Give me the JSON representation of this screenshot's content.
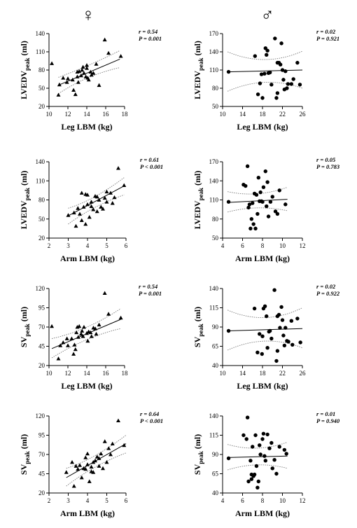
{
  "headers": {
    "female": "♀",
    "male": "♂"
  },
  "chart_data": [
    {
      "type": "scatter",
      "panel": "lvedv-leglbm-female",
      "marker": "triangle",
      "xlabel": "Leg LBM (kg)",
      "ylabel_main": "LVEDV",
      "ylabel_sub": "peak",
      "ylabel_unit": " (ml)",
      "xlim": [
        10,
        18
      ],
      "ylim": [
        20,
        140
      ],
      "xticks": [
        "10",
        "12",
        "14",
        "16",
        "18"
      ],
      "yticks": [
        "20",
        "50",
        "80",
        "110",
        "140"
      ],
      "stat_r": "r = 0.54",
      "stat_p": "P = 0.001",
      "fit": [
        [
          11,
          55
        ],
        [
          17.5,
          98
        ]
      ],
      "ci_upper": [
        [
          11,
          68
        ],
        [
          14,
          85
        ],
        [
          17.5,
          112
        ]
      ],
      "ci_lower": [
        [
          11,
          41
        ],
        [
          14,
          72
        ],
        [
          17.5,
          84
        ]
      ],
      "x": [
        10.3,
        11.0,
        11.1,
        11.5,
        11.9,
        12.0,
        12.5,
        12.6,
        12.8,
        13.0,
        13.0,
        13.2,
        13.4,
        13.5,
        13.6,
        13.7,
        13.9,
        14.0,
        14.0,
        14.1,
        14.2,
        14.4,
        14.5,
        14.7,
        15.0,
        15.3,
        15.9,
        16.3,
        17.6,
        13.1
      ],
      "y": [
        91,
        39,
        56,
        67,
        60,
        66,
        64,
        47,
        40,
        69,
        77,
        78,
        71,
        80,
        85,
        75,
        69,
        88,
        83,
        67,
        64,
        77,
        72,
        75,
        90,
        55,
        130,
        108,
        103,
        60
      ]
    },
    {
      "type": "scatter",
      "panel": "lvedv-leglbm-male",
      "marker": "circle",
      "xlabel": "Leg LBM (kg)",
      "ylabel_main": "LVEDV",
      "ylabel_sub": "peak",
      "ylabel_unit": " (ml)",
      "xlim": [
        10,
        26
      ],
      "ylim": [
        50,
        170
      ],
      "xticks": [
        "10",
        "14",
        "18",
        "22",
        "26"
      ],
      "yticks": [
        "50",
        "80",
        "110",
        "140",
        "170"
      ],
      "stat_r": "r = 0.02",
      "stat_p": "P = 0.921",
      "fit": [
        [
          11,
          107
        ],
        [
          26,
          110
        ]
      ],
      "ci_upper": [
        [
          11,
          140
        ],
        [
          18.5,
          114
        ],
        [
          26,
          141
        ]
      ],
      "ci_lower": [
        [
          11,
          75
        ],
        [
          18.5,
          102
        ],
        [
          26,
          80
        ]
      ],
      "x": [
        11.2,
        16.5,
        17.1,
        17.5,
        18.0,
        18.4,
        18.6,
        18.8,
        19.0,
        19.2,
        19.8,
        20.5,
        20.8,
        21.0,
        21.3,
        21.6,
        21.8,
        22.0,
        22.2,
        22.4,
        22.6,
        22.9,
        23.1,
        24.2,
        25.0,
        25.5,
        17.8,
        19.5,
        21.0,
        23.8
      ],
      "y": [
        107,
        133,
        70,
        88,
        64,
        104,
        146,
        135,
        142,
        105,
        86,
        162,
        64,
        122,
        122,
        119,
        154,
        110,
        94,
        78,
        108,
        80,
        87,
        95,
        122,
        86,
        103,
        106,
        72,
        87
      ]
    },
    {
      "type": "scatter",
      "panel": "lvedv-armlbm-female",
      "marker": "triangle",
      "xlabel": "Arm LBM (kg)",
      "ylabel_main": "LVEDV",
      "ylabel_sub": "peak",
      "ylabel_unit": " (ml)",
      "xlim": [
        2,
        6
      ],
      "ylim": [
        20,
        140
      ],
      "xticks": [
        "2",
        "3",
        "4",
        "5",
        "6"
      ],
      "yticks": [
        "20",
        "50",
        "80",
        "110",
        "140"
      ],
      "stat_r": "r = 0.61",
      "stat_p": "P < 0.001",
      "fit": [
        [
          3,
          55
        ],
        [
          5.9,
          102
        ]
      ],
      "ci_upper": [
        [
          3,
          67
        ],
        [
          4.3,
          79
        ],
        [
          5.9,
          115
        ]
      ],
      "ci_lower": [
        [
          3,
          42
        ],
        [
          4.3,
          71
        ],
        [
          5.9,
          88
        ]
      ],
      "x": [
        3.0,
        3.3,
        3.4,
        3.5,
        3.7,
        3.7,
        3.8,
        3.9,
        3.9,
        4.0,
        4.0,
        4.1,
        4.2,
        4.3,
        4.4,
        4.5,
        4.6,
        4.7,
        4.8,
        4.9,
        5.0,
        5.0,
        5.2,
        5.3,
        5.6,
        5.9,
        4.2,
        3.6,
        4.5,
        5.4
      ],
      "y": [
        56,
        60,
        39,
        67,
        91,
        48,
        69,
        89,
        42,
        73,
        88,
        53,
        77,
        65,
        86,
        85,
        80,
        69,
        66,
        83,
        93,
        77,
        91,
        75,
        130,
        103,
        70,
        58,
        62,
        84
      ]
    },
    {
      "type": "scatter",
      "panel": "lvedv-armlbm-male",
      "marker": "circle",
      "xlabel": "Arm LBM (kg)",
      "ylabel_main": "LVEDV",
      "ylabel_sub": "peak",
      "ylabel_unit": " (ml)",
      "xlim": [
        4,
        12
      ],
      "ylim": [
        50,
        170
      ],
      "xticks": [
        "4",
        "6",
        "8",
        "10",
        "12"
      ],
      "yticks": [
        "50",
        "80",
        "110",
        "140",
        "170"
      ],
      "stat_r": "r = 0.05",
      "stat_p": "P = 0.783",
      "fit": [
        [
          4.5,
          106
        ],
        [
          10.5,
          111
        ]
      ],
      "ci_upper": [
        [
          4.5,
          123
        ],
        [
          7.5,
          113
        ],
        [
          10.5,
          130
        ]
      ],
      "ci_lower": [
        [
          4.5,
          91
        ],
        [
          7.5,
          103
        ],
        [
          10.5,
          93
        ]
      ],
      "x": [
        4.6,
        6.1,
        6.3,
        6.5,
        6.6,
        6.7,
        6.9,
        7.0,
        7.1,
        7.2,
        7.3,
        7.4,
        7.5,
        7.6,
        7.8,
        7.9,
        8.0,
        8.1,
        8.3,
        8.5,
        8.6,
        8.8,
        9.0,
        9.3,
        9.5,
        9.7,
        10.3,
        6.8,
        7.7,
        8.4
      ],
      "y": [
        107,
        134,
        132,
        163,
        98,
        103,
        80,
        105,
        72,
        120,
        65,
        118,
        88,
        145,
        122,
        108,
        107,
        130,
        155,
        138,
        84,
        107,
        115,
        92,
        88,
        125,
        103,
        65,
        108,
        100
      ]
    },
    {
      "type": "scatter",
      "panel": "sv-leglbm-female",
      "marker": "triangle",
      "xlabel": "Leg LBM (kg)",
      "ylabel_main": "SV",
      "ylabel_sub": "peak",
      "ylabel_unit": " (ml)",
      "xlim": [
        10,
        18
      ],
      "ylim": [
        20,
        120
      ],
      "xticks": [
        "10",
        "12",
        "14",
        "16",
        "18"
      ],
      "yticks": [
        "20",
        "45",
        "70",
        "95",
        "120"
      ],
      "stat_r": "r = 0.54",
      "stat_p": "P = 0.001",
      "fit": [
        [
          10.3,
          42
        ],
        [
          17.6,
          80
        ]
      ],
      "ci_upper": [
        [
          10.3,
          55
        ],
        [
          14,
          65
        ],
        [
          17.6,
          94
        ]
      ],
      "ci_lower": [
        [
          10.3,
          30
        ],
        [
          14,
          58
        ],
        [
          17.6,
          68
        ]
      ],
      "x": [
        10.3,
        11.0,
        11.2,
        11.5,
        11.9,
        12.0,
        12.4,
        12.6,
        12.8,
        12.9,
        13.0,
        13.2,
        13.4,
        13.5,
        13.6,
        13.7,
        14.0,
        14.1,
        14.2,
        14.4,
        14.5,
        14.7,
        15.0,
        15.3,
        15.9,
        16.3,
        17.6,
        13.1,
        12.7,
        14.9
      ],
      "y": [
        71,
        29,
        46,
        50,
        55,
        46,
        55,
        35,
        41,
        63,
        70,
        71,
        61,
        65,
        58,
        70,
        62,
        52,
        64,
        63,
        58,
        69,
        61,
        73,
        114,
        87,
        82,
        57,
        47,
        68
      ]
    },
    {
      "type": "scatter",
      "panel": "sv-leglbm-male",
      "marker": "circle",
      "xlabel": "Leg LBM (kg)",
      "ylabel_main": "SV",
      "ylabel_sub": "peak",
      "ylabel_unit": " (ml)",
      "xlim": [
        10,
        26
      ],
      "ylim": [
        40,
        140
      ],
      "xticks": [
        "10",
        "14",
        "18",
        "22",
        "26"
      ],
      "yticks": [
        "40",
        "65",
        "90",
        "115",
        "140"
      ],
      "stat_r": "r = 0.02",
      "stat_p": "P = 0.922",
      "fit": [
        [
          11,
          85
        ],
        [
          26,
          88
        ]
      ],
      "ci_upper": [
        [
          11,
          112
        ],
        [
          18.5,
          91
        ],
        [
          26,
          115
        ]
      ],
      "ci_lower": [
        [
          11,
          60
        ],
        [
          18.5,
          82
        ],
        [
          26,
          63
        ]
      ],
      "x": [
        11.2,
        16.4,
        17.0,
        17.4,
        17.9,
        18.2,
        18.5,
        18.8,
        19.0,
        19.3,
        19.8,
        20.4,
        20.8,
        21.0,
        21.3,
        21.5,
        21.8,
        22.0,
        22.2,
        22.4,
        22.6,
        22.9,
        23.2,
        24.0,
        25.0,
        25.6,
        18.0,
        19.5,
        21.0,
        23.8
      ],
      "y": [
        85,
        114,
        57,
        81,
        55,
        114,
        117,
        104,
        63,
        84,
        75,
        138,
        46,
        104,
        106,
        89,
        116,
        99,
        79,
        66,
        89,
        72,
        71,
        67,
        101,
        70,
        78,
        85,
        59,
        98
      ]
    },
    {
      "type": "scatter",
      "panel": "sv-armlbm-female",
      "marker": "triangle",
      "xlabel": "Arm LBM (kg)",
      "ylabel_main": "SV",
      "ylabel_sub": "peak",
      "ylabel_unit": " (ml)",
      "xlim": [
        2,
        6
      ],
      "ylim": [
        20,
        120
      ],
      "xticks": [
        "2",
        "3",
        "4",
        "5",
        "6"
      ],
      "yticks": [
        "20",
        "45",
        "70",
        "95",
        "120"
      ],
      "stat_r": "r = 0.64",
      "stat_p": "P < 0.001",
      "fit": [
        [
          2.9,
          40
        ],
        [
          6.0,
          84
        ]
      ],
      "ci_upper": [
        [
          2.9,
          52
        ],
        [
          4.3,
          63
        ],
        [
          6.0,
          95
        ]
      ],
      "ci_lower": [
        [
          2.9,
          29
        ],
        [
          4.3,
          56
        ],
        [
          6.0,
          72
        ]
      ],
      "x": [
        2.9,
        3.2,
        3.3,
        3.4,
        3.6,
        3.7,
        3.8,
        3.9,
        3.9,
        4.0,
        4.0,
        4.1,
        4.2,
        4.3,
        4.3,
        4.4,
        4.5,
        4.6,
        4.7,
        4.8,
        4.9,
        5.0,
        5.1,
        5.3,
        5.6,
        5.9,
        3.5,
        4.2,
        4.6,
        5.2
      ],
      "y": [
        47,
        60,
        29,
        55,
        56,
        40,
        52,
        66,
        51,
        71,
        57,
        35,
        54,
        60,
        47,
        62,
        67,
        55,
        71,
        52,
        87,
        60,
        78,
        84,
        114,
        82,
        51,
        48,
        65,
        70
      ]
    },
    {
      "type": "scatter",
      "panel": "sv-armlbm-male",
      "marker": "circle",
      "xlabel": "Arm LBM (kg)",
      "ylabel_main": "SV",
      "ylabel_sub": "peak",
      "ylabel_unit": " (ml)",
      "xlim": [
        4,
        12
      ],
      "ylim": [
        40,
        140
      ],
      "xticks": [
        "4",
        "6",
        "8",
        "10",
        "12"
      ],
      "yticks": [
        "40",
        "65",
        "90",
        "115",
        "140"
      ],
      "stat_r": "r = 0.01",
      "stat_p": "P = 0.940",
      "fit": [
        [
          4.5,
          86
        ],
        [
          10.5,
          88
        ]
      ],
      "ci_upper": [
        [
          4.5,
          103
        ],
        [
          7.5,
          92
        ],
        [
          10.5,
          106
        ]
      ],
      "ci_lower": [
        [
          4.5,
          70
        ],
        [
          7.5,
          82
        ],
        [
          10.5,
          72
        ]
      ],
      "x": [
        4.6,
        6.1,
        6.4,
        6.5,
        6.6,
        6.8,
        6.9,
        7.0,
        7.1,
        7.2,
        7.3,
        7.5,
        7.6,
        7.7,
        7.8,
        8.0,
        8.1,
        8.3,
        8.5,
        8.7,
        8.9,
        9.0,
        9.2,
        9.4,
        9.7,
        10.2,
        10.4,
        6.9,
        7.4,
        8.2
      ],
      "y": [
        85,
        115,
        110,
        138,
        55,
        82,
        64,
        100,
        62,
        64,
        115,
        47,
        55,
        102,
        90,
        110,
        117,
        82,
        116,
        98,
        105,
        72,
        83,
        65,
        100,
        96,
        91,
        58,
        75,
        88
      ]
    }
  ]
}
